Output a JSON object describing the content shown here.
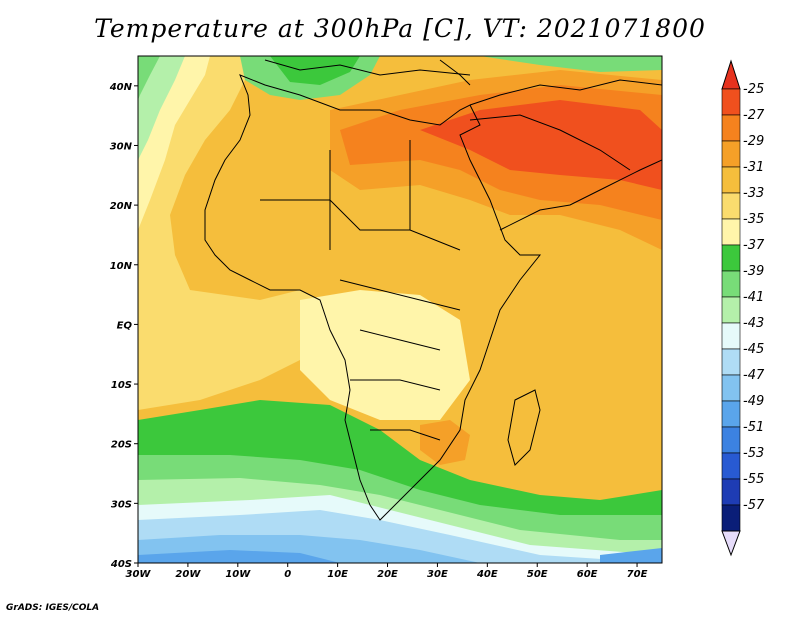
{
  "title": "Temperature at 300hPa [C], VT: 2021071800",
  "credit": "GrADS: IGES/COLA",
  "map": {
    "lon_range": [
      -30,
      75
    ],
    "lat_range": [
      -40,
      45
    ],
    "lat_ticks": [
      {
        "label": "40N",
        "value": 40
      },
      {
        "label": "30N",
        "value": 30
      },
      {
        "label": "20N",
        "value": 20
      },
      {
        "label": "10N",
        "value": 10
      },
      {
        "label": "EQ",
        "value": 0
      },
      {
        "label": "10S",
        "value": -10
      },
      {
        "label": "20S",
        "value": -20
      },
      {
        "label": "30S",
        "value": -30
      },
      {
        "label": "40S",
        "value": -40
      }
    ],
    "lon_ticks": [
      {
        "label": "30W",
        "value": -30
      },
      {
        "label": "20W",
        "value": -20
      },
      {
        "label": "10W",
        "value": -10
      },
      {
        "label": "0",
        "value": 0
      },
      {
        "label": "10E",
        "value": 10
      },
      {
        "label": "20E",
        "value": 20
      },
      {
        "label": "30E",
        "value": 30
      },
      {
        "label": "40E",
        "value": 40
      },
      {
        "label": "50E",
        "value": 50
      },
      {
        "label": "60E",
        "value": 60
      },
      {
        "label": "70E",
        "value": 70
      }
    ]
  },
  "colorbar": {
    "levels": [
      {
        "label": "-25",
        "color": "#f0501e"
      },
      {
        "label": "-27",
        "color": "#f5821e"
      },
      {
        "label": "-29",
        "color": "#f5a028"
      },
      {
        "label": "-31",
        "color": "#f5be3c"
      },
      {
        "label": "-33",
        "color": "#fadc6e"
      },
      {
        "label": "-35",
        "color": "#fff5aa"
      },
      {
        "label": "-37",
        "color": "#3cc83c"
      },
      {
        "label": "-39",
        "color": "#78dc78"
      },
      {
        "label": "-41",
        "color": "#b4f0aa"
      },
      {
        "label": "-43",
        "color": "#e6fafa"
      },
      {
        "label": "-45",
        "color": "#afdcf5"
      },
      {
        "label": "-47",
        "color": "#82c3f0"
      },
      {
        "label": "-49",
        "color": "#5aa5eb"
      },
      {
        "label": "-51",
        "color": "#3c82e1"
      },
      {
        "label": "-53",
        "color": "#285ad2"
      },
      {
        "label": "-55",
        "color": "#1e3cb4"
      },
      {
        "label": "-57",
        "color": "#0a1e78"
      }
    ],
    "top_color": "#e6321e",
    "bottom_color": "#e6dcfa"
  }
}
